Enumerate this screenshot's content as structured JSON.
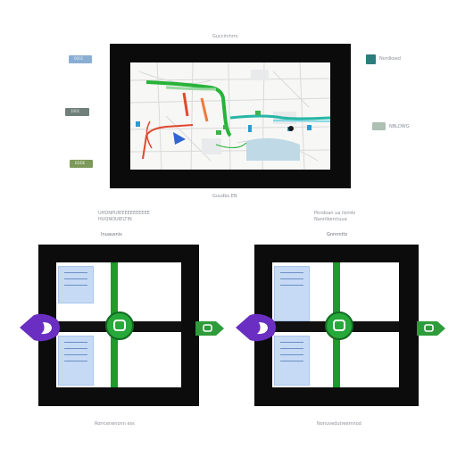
{
  "top": {
    "caption_top": "Guccirchrrs",
    "caption_bottom": "Guudbs EN",
    "chips": [
      {
        "label": "0001"
      },
      {
        "label": "1001"
      },
      {
        "label": "EDDE"
      },
      {
        "label": "Nordkoed"
      },
      {
        "label": "NBLDWG"
      }
    ]
  },
  "left_card": {
    "heading_small": "UHDNPUIEEEEEEEEEEE",
    "heading_small2": "HUQNOUIELTIN",
    "title": "Inuausnis",
    "footer": "Rorrcenenonn ess"
  },
  "right_card": {
    "heading_small": "Pkndoan ua ilsrrds",
    "heading_small2": "Nanrilkerctuua",
    "title": "Gnnnntts",
    "footer": "Nonuvedutreemnod"
  },
  "colors": {
    "frame": "#0b0b0b",
    "route_green": "#22a534",
    "purple_pin": "#6a2fc2",
    "panel_blue": "#c6daf5"
  }
}
